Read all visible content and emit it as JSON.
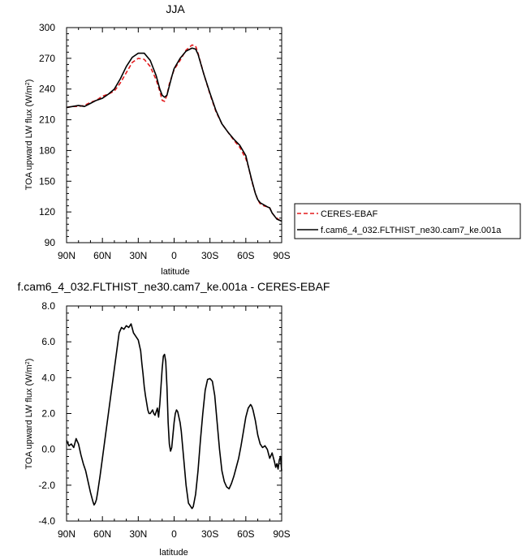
{
  "chart_data": [
    {
      "type": "line",
      "title": "JJA",
      "xlabel": "latitude",
      "ylabel": "TOA upward LW flux (W/m",
      "ylabel_sup": "2",
      "ylabel_end": ")",
      "xlim": [
        90,
        -90
      ],
      "ylim": [
        90,
        300
      ],
      "x_ticks": [
        90,
        60,
        30,
        0,
        -30,
        -60,
        -90
      ],
      "x_tick_labels": [
        "90N",
        "60N",
        "30N",
        "0",
        "30S",
        "60S",
        "90S"
      ],
      "y_ticks": [
        90,
        120,
        150,
        180,
        210,
        240,
        270,
        300
      ],
      "y_tick_labels": [
        "90",
        "120",
        "150",
        "180",
        "210",
        "240",
        "270",
        "300"
      ],
      "legend_placement": "right, outside",
      "series": [
        {
          "name": "CERES-EBAF",
          "color": "#e41a1c",
          "style": "dashed",
          "x": [
            90,
            85,
            80,
            75,
            70,
            65,
            60,
            55,
            50,
            45,
            40,
            35,
            30,
            25,
            20,
            15,
            12,
            10,
            8,
            6,
            4,
            2,
            0,
            -5,
            -10,
            -15,
            -18,
            -20,
            -25,
            -30,
            -35,
            -40,
            -45,
            -50,
            -55,
            -60,
            -62,
            -65,
            -68,
            -70,
            -72,
            -75,
            -78,
            -80,
            -82,
            -84,
            -86,
            -88,
            -90
          ],
          "y": [
            222,
            223,
            223,
            224,
            227,
            229,
            233,
            235,
            238,
            246,
            256,
            266,
            270,
            269,
            262,
            249,
            238,
            229,
            228,
            234,
            245,
            252,
            259,
            268,
            278,
            283,
            282,
            275,
            254,
            235,
            218,
            206,
            198,
            190,
            183,
            172,
            165,
            150,
            138,
            132,
            128,
            126,
            125,
            124,
            119,
            116,
            114,
            112,
            112
          ]
        },
        {
          "name": "f.cam6_4_032.FLTHIST_ne30.cam7_ke.001a",
          "color": "#000000",
          "style": "solid",
          "x": [
            90,
            85,
            80,
            75,
            70,
            65,
            60,
            55,
            50,
            45,
            40,
            35,
            30,
            25,
            20,
            15,
            12,
            10,
            8,
            6,
            4,
            2,
            0,
            -5,
            -10,
            -15,
            -18,
            -20,
            -25,
            -30,
            -35,
            -40,
            -45,
            -50,
            -55,
            -60,
            -62,
            -65,
            -68,
            -70,
            -72,
            -75,
            -78,
            -80,
            -82,
            -84,
            -86,
            -88,
            -90
          ],
          "y": [
            222,
            223,
            224,
            223,
            226,
            229,
            231,
            235,
            240,
            250,
            262,
            271,
            275,
            275,
            268,
            253,
            240,
            234,
            232,
            234,
            243,
            252,
            260,
            270,
            277,
            280,
            279,
            274,
            254,
            236,
            219,
            206,
            198,
            191,
            185,
            175,
            165,
            151,
            138,
            132,
            129,
            127,
            125,
            124,
            119,
            116,
            113,
            112,
            111
          ]
        }
      ]
    },
    {
      "type": "line",
      "title": "f.cam6_4_032.FLTHIST_ne30.cam7_ke.001a - CERES-EBAF",
      "xlabel": "latitude",
      "ylabel": "TOA upward LW flux (W/m",
      "ylabel_sup": "2",
      "ylabel_end": ")",
      "xlim": [
        90,
        -90
      ],
      "ylim": [
        -4.0,
        8.0
      ],
      "x_ticks": [
        90,
        60,
        30,
        0,
        -30,
        -60,
        -90
      ],
      "x_tick_labels": [
        "90N",
        "60N",
        "30N",
        "0",
        "30S",
        "60S",
        "90S"
      ],
      "y_ticks": [
        -4,
        -2,
        0,
        2,
        4,
        6,
        8
      ],
      "y_tick_labels": [
        "-4.0",
        "-2.0",
        "0.0",
        "2.0",
        "4.0",
        "6.0",
        "8.0"
      ],
      "series": [
        {
          "color": "#000000",
          "style": "solid",
          "x": [
            90,
            88,
            86,
            84,
            82,
            80,
            78,
            76,
            74,
            72,
            70,
            68,
            67,
            66,
            65,
            64,
            62,
            60,
            58,
            55,
            52,
            50,
            48,
            46,
            44,
            42,
            40,
            38,
            36,
            34,
            32,
            30,
            28,
            27,
            26,
            25,
            24,
            23,
            22,
            21,
            20,
            19,
            18,
            17,
            16,
            15,
            14,
            13,
            12,
            11,
            10,
            9,
            8,
            7,
            6,
            5,
            4,
            3,
            2,
            1,
            0,
            -1,
            -2,
            -3,
            -4,
            -5,
            -6,
            -8,
            -10,
            -12,
            -14,
            -15,
            -16,
            -18,
            -20,
            -22,
            -24,
            -26,
            -28,
            -30,
            -32,
            -34,
            -36,
            -38,
            -40,
            -42,
            -44,
            -46,
            -48,
            -50,
            -52,
            -54,
            -56,
            -58,
            -60,
            -62,
            -64,
            -65,
            -66,
            -68,
            -70,
            -72,
            -74,
            -76,
            -78,
            -80,
            -82,
            -84,
            -85,
            -86,
            -87,
            -88,
            -89,
            -90
          ],
          "y": [
            0.5,
            0.2,
            0.3,
            0.1,
            0.6,
            0.3,
            -0.3,
            -0.8,
            -1.2,
            -1.8,
            -2.4,
            -2.9,
            -3.1,
            -3.0,
            -2.8,
            -2.4,
            -1.5,
            -0.5,
            0.5,
            2.0,
            3.5,
            4.5,
            5.5,
            6.5,
            6.8,
            6.7,
            6.9,
            6.8,
            7.0,
            6.5,
            6.3,
            6.1,
            5.5,
            4.8,
            4.2,
            3.5,
            3.0,
            2.6,
            2.2,
            2.0,
            2.0,
            2.1,
            2.2,
            2.0,
            1.9,
            2.1,
            2.3,
            1.8,
            2.5,
            3.5,
            4.5,
            5.2,
            5.3,
            4.9,
            3.5,
            1.5,
            0.3,
            -0.1,
            0.1,
            0.8,
            1.5,
            2.0,
            2.2,
            2.1,
            1.8,
            1.5,
            1.0,
            -0.5,
            -2.0,
            -3.0,
            -3.2,
            -3.3,
            -3.2,
            -2.5,
            -1.2,
            0.5,
            2.0,
            3.3,
            3.9,
            3.95,
            3.8,
            3.0,
            1.5,
            0.0,
            -1.2,
            -1.8,
            -2.1,
            -2.2,
            -1.9,
            -1.5,
            -1.0,
            -0.5,
            0.2,
            1.0,
            1.8,
            2.3,
            2.5,
            2.4,
            2.2,
            1.6,
            0.8,
            0.3,
            0.1,
            0.2,
            0.0,
            -0.5,
            -0.2,
            -0.7,
            -1.0,
            -0.8,
            -1.1,
            -0.6,
            -0.4,
            -1.2
          ]
        }
      ]
    }
  ]
}
